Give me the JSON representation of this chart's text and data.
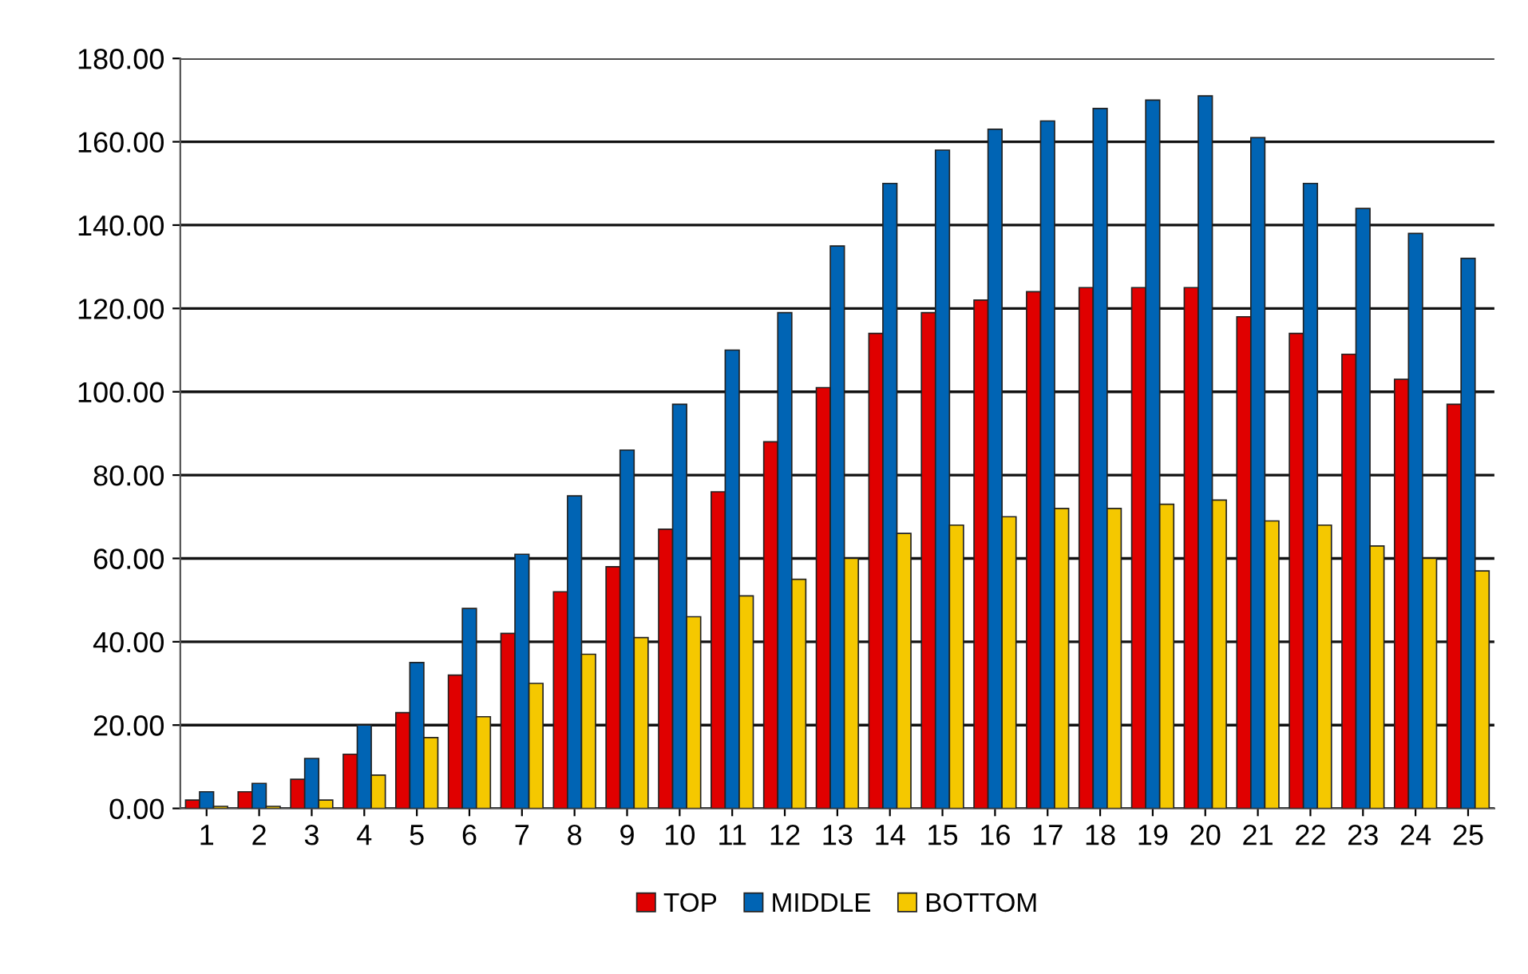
{
  "chart_data": {
    "type": "bar",
    "categories": [
      "1",
      "2",
      "3",
      "4",
      "5",
      "6",
      "7",
      "8",
      "9",
      "10",
      "11",
      "12",
      "13",
      "14",
      "15",
      "16",
      "17",
      "18",
      "19",
      "20",
      "21",
      "22",
      "23",
      "24",
      "25"
    ],
    "series": [
      {
        "name": "TOP",
        "color": "#e00000",
        "values": [
          2,
          4,
          7,
          13,
          23,
          32,
          42,
          52,
          58,
          67,
          76,
          88,
          101,
          114,
          119,
          122,
          124,
          125,
          125,
          125,
          118,
          114,
          109,
          103,
          97
        ]
      },
      {
        "name": "MIDDLE",
        "color": "#0064b4",
        "values": [
          4,
          6,
          12,
          20,
          35,
          48,
          61,
          75,
          86,
          97,
          110,
          119,
          135,
          150,
          158,
          163,
          165,
          168,
          170,
          171,
          161,
          150,
          144,
          138,
          132
        ]
      },
      {
        "name": "BOTTOM",
        "color": "#f5c800",
        "values": [
          0.5,
          0.5,
          2,
          8,
          17,
          22,
          30,
          37,
          41,
          46,
          51,
          55,
          60,
          66,
          68,
          70,
          72,
          72,
          73,
          74,
          69,
          68,
          63,
          60,
          57
        ]
      }
    ],
    "ylim": [
      0,
      180
    ],
    "yticks": [
      {
        "value": 0,
        "label": "0.00"
      },
      {
        "value": 20,
        "label": "20.00"
      },
      {
        "value": 40,
        "label": "40.00"
      },
      {
        "value": 60,
        "label": "60.00"
      },
      {
        "value": 80,
        "label": "80.00"
      },
      {
        "value": 100,
        "label": "100.00"
      },
      {
        "value": 120,
        "label": "120.00"
      },
      {
        "value": 140,
        "label": "140.00"
      },
      {
        "value": 160,
        "label": "160.00"
      },
      {
        "value": 180,
        "label": "180.00"
      }
    ],
    "grid": "y",
    "legend": "bottom"
  }
}
